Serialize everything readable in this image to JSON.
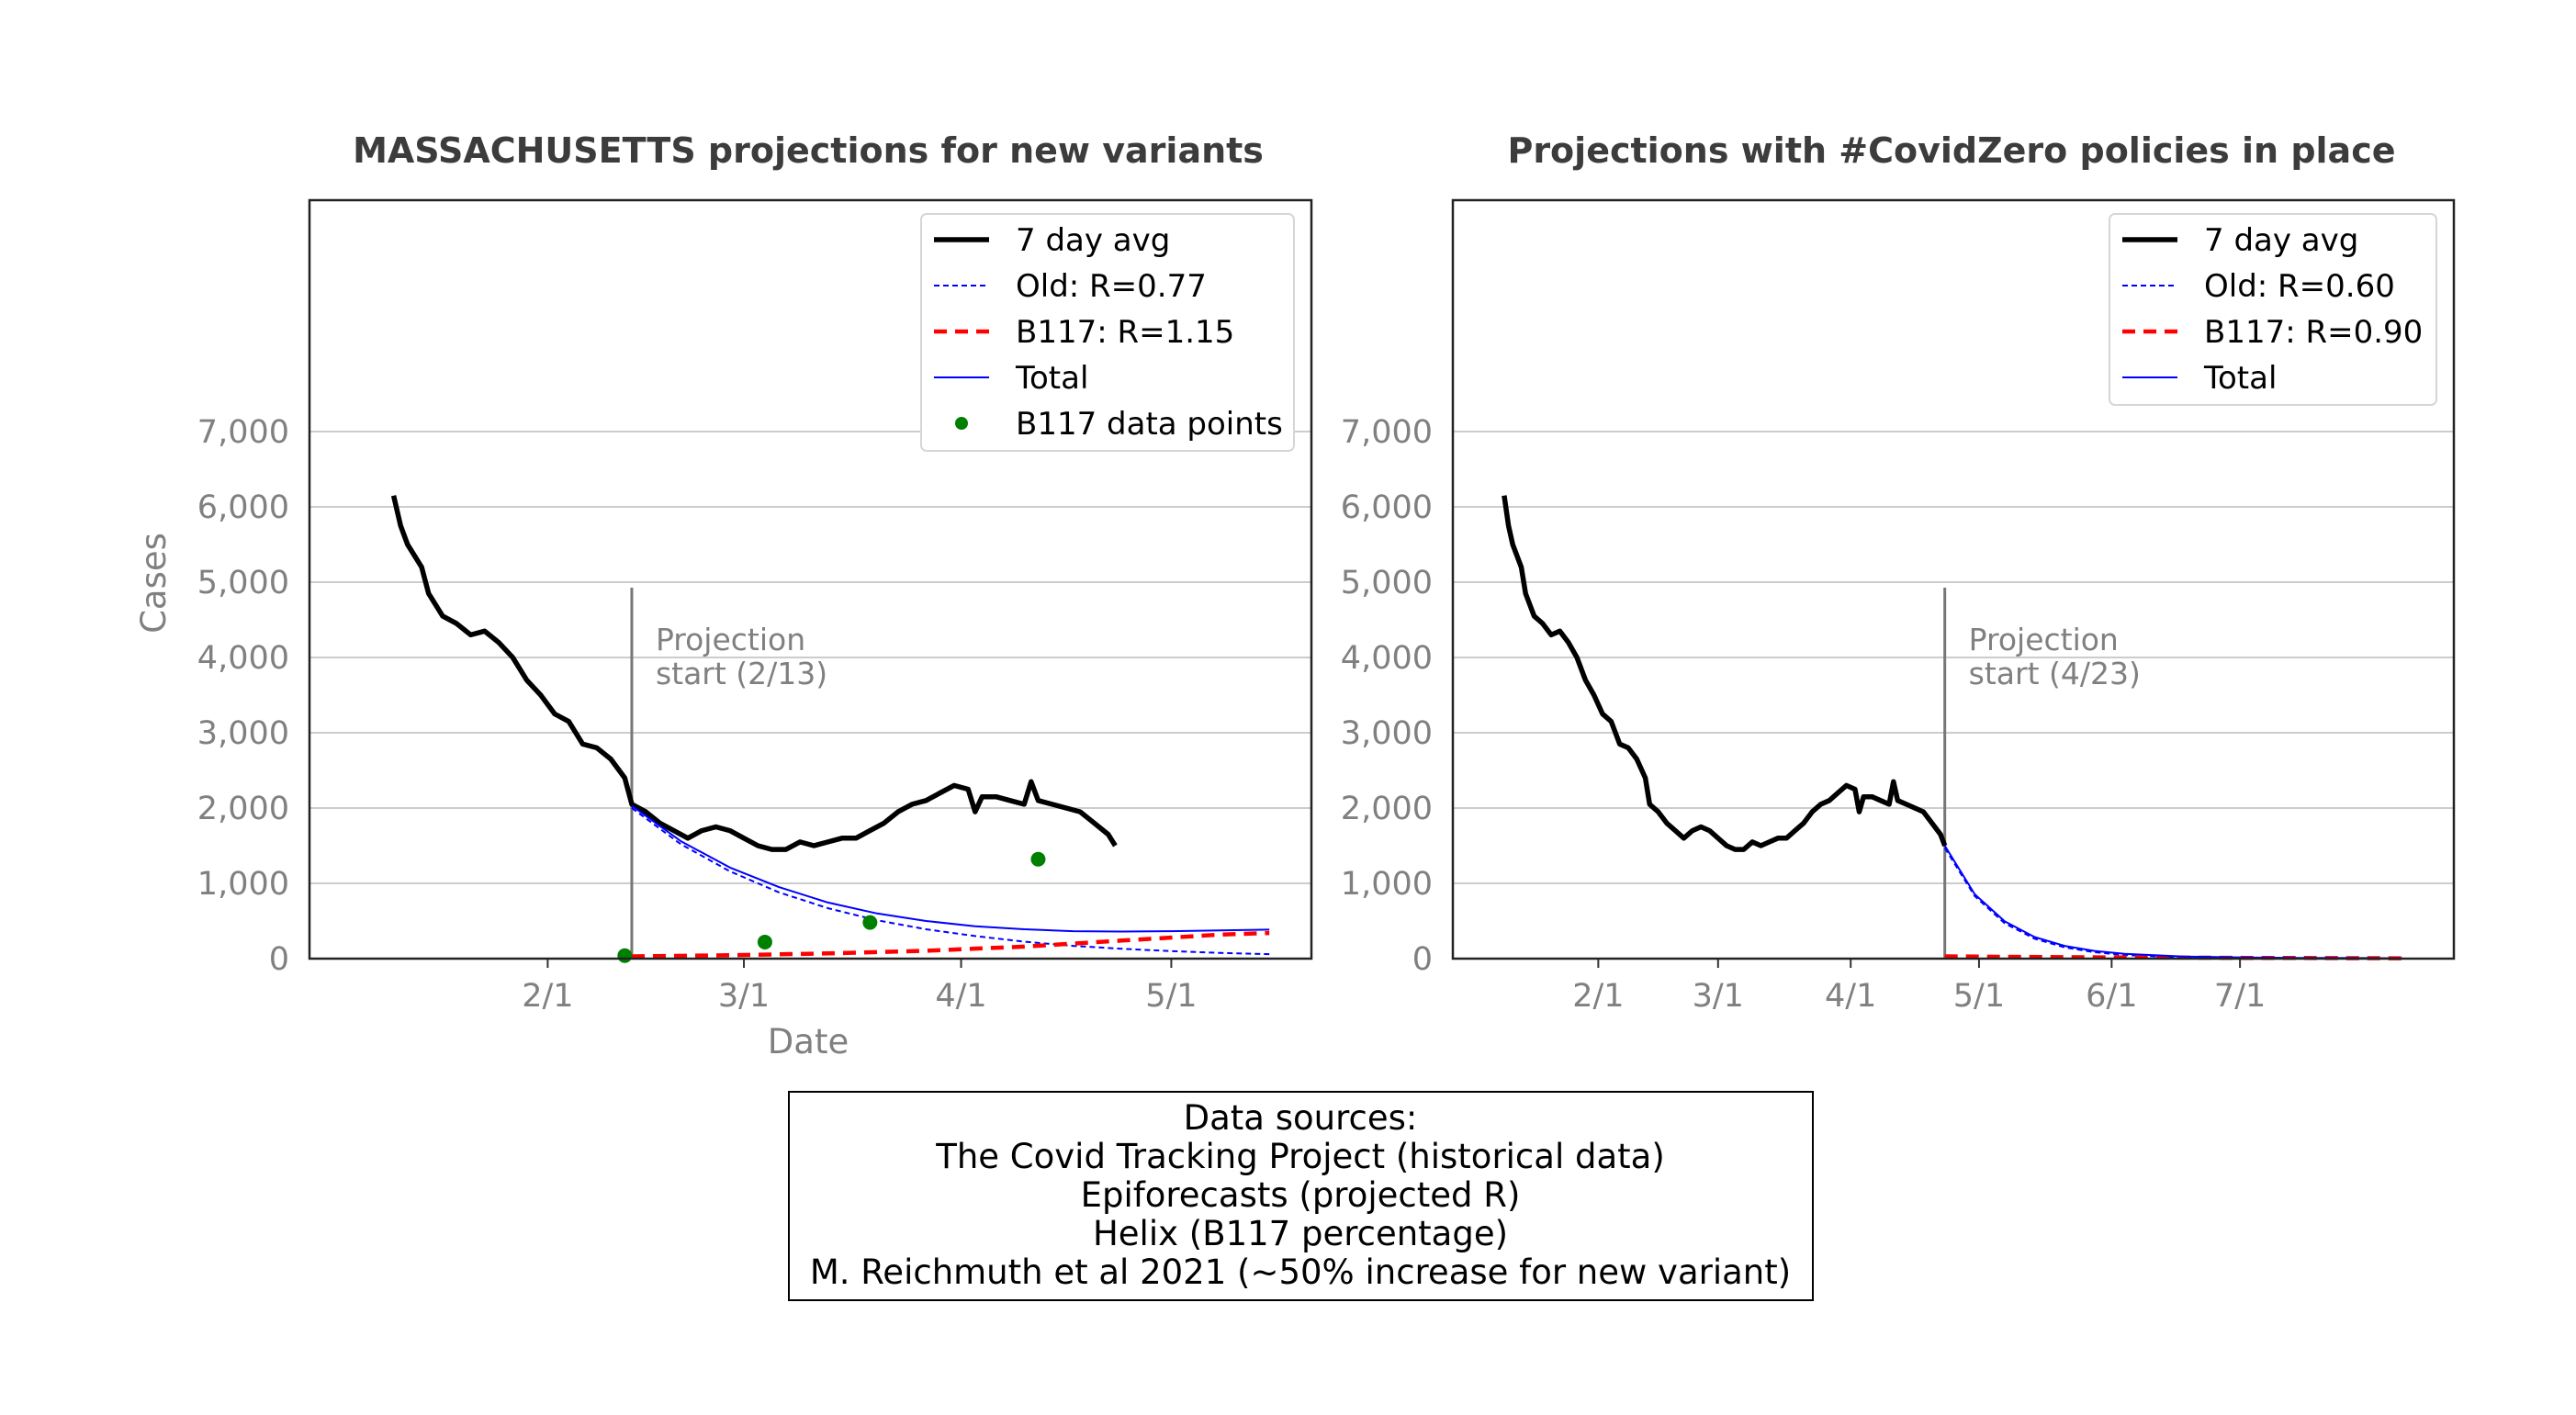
{
  "chart_data": [
    {
      "type": "line",
      "title": "MASSACHUSETTS projections for new variants",
      "xlabel": "Date",
      "ylabel": "Cases",
      "ylim": [
        0,
        7000
      ],
      "yticks": [
        0,
        1000,
        2000,
        3000,
        4000,
        5000,
        6000,
        7000
      ],
      "ytick_labels": [
        "0",
        "1,000",
        "2,000",
        "3,000",
        "4,000",
        "5,000",
        "6,000",
        "7,000"
      ],
      "xticks": [
        "2/1",
        "3/1",
        "4/1",
        "5/1"
      ],
      "grid": "horizontal",
      "legend_position": "top-right",
      "projection_start": "2021-02-13",
      "annotation": [
        "Projection",
        "start (2/13)"
      ],
      "series": [
        {
          "name": "7 day avg",
          "style": "solid",
          "color": "#000000",
          "points": [
            [
              "2021-01-10",
              6150
            ],
            [
              "2021-01-11",
              5750
            ],
            [
              "2021-01-12",
              5500
            ],
            [
              "2021-01-14",
              5200
            ],
            [
              "2021-01-15",
              4850
            ],
            [
              "2021-01-17",
              4550
            ],
            [
              "2021-01-19",
              4450
            ],
            [
              "2021-01-21",
              4300
            ],
            [
              "2021-01-23",
              4350
            ],
            [
              "2021-01-25",
              4200
            ],
            [
              "2021-01-27",
              4000
            ],
            [
              "2021-01-29",
              3700
            ],
            [
              "2021-01-31",
              3500
            ],
            [
              "2021-02-02",
              3250
            ],
            [
              "2021-02-04",
              3150
            ],
            [
              "2021-02-06",
              2850
            ],
            [
              "2021-02-08",
              2800
            ],
            [
              "2021-02-10",
              2650
            ],
            [
              "2021-02-12",
              2400
            ],
            [
              "2021-02-13",
              2050
            ],
            [
              "2021-02-15",
              1950
            ],
            [
              "2021-02-17",
              1800
            ],
            [
              "2021-02-19",
              1700
            ],
            [
              "2021-02-21",
              1600
            ],
            [
              "2021-02-23",
              1700
            ],
            [
              "2021-02-25",
              1750
            ],
            [
              "2021-02-27",
              1700
            ],
            [
              "2021-03-01",
              1600
            ],
            [
              "2021-03-03",
              1500
            ],
            [
              "2021-03-05",
              1450
            ],
            [
              "2021-03-07",
              1450
            ],
            [
              "2021-03-09",
              1550
            ],
            [
              "2021-03-11",
              1500
            ],
            [
              "2021-03-13",
              1550
            ],
            [
              "2021-03-15",
              1600
            ],
            [
              "2021-03-17",
              1600
            ],
            [
              "2021-03-19",
              1700
            ],
            [
              "2021-03-21",
              1800
            ],
            [
              "2021-03-23",
              1950
            ],
            [
              "2021-03-25",
              2050
            ],
            [
              "2021-03-27",
              2100
            ],
            [
              "2021-03-29",
              2200
            ],
            [
              "2021-03-31",
              2300
            ],
            [
              "2021-04-02",
              2250
            ],
            [
              "2021-04-03",
              1950
            ],
            [
              "2021-04-04",
              2150
            ],
            [
              "2021-04-06",
              2150
            ],
            [
              "2021-04-08",
              2100
            ],
            [
              "2021-04-10",
              2050
            ],
            [
              "2021-04-11",
              2350
            ],
            [
              "2021-04-12",
              2100
            ],
            [
              "2021-04-14",
              2050
            ],
            [
              "2021-04-16",
              2000
            ],
            [
              "2021-04-18",
              1950
            ],
            [
              "2021-04-20",
              1800
            ],
            [
              "2021-04-22",
              1650
            ],
            [
              "2021-04-23",
              1500
            ]
          ]
        },
        {
          "name": "Old: R=0.77",
          "style": "dashed",
          "color": "#0000ff",
          "points": [
            [
              "2021-02-13",
              2000
            ],
            [
              "2021-02-20",
              1520
            ],
            [
              "2021-02-27",
              1160
            ],
            [
              "2021-03-06",
              880
            ],
            [
              "2021-03-13",
              670
            ],
            [
              "2021-03-20",
              510
            ],
            [
              "2021-03-27",
              390
            ],
            [
              "2021-04-03",
              300
            ],
            [
              "2021-04-10",
              225
            ],
            [
              "2021-04-17",
              170
            ],
            [
              "2021-04-24",
              130
            ],
            [
              "2021-05-01",
              100
            ],
            [
              "2021-05-08",
              75
            ],
            [
              "2021-05-15",
              60
            ]
          ]
        },
        {
          "name": "B117: R=1.15",
          "style": "dashed",
          "color": "#ff0000",
          "points": [
            [
              "2021-02-13",
              30
            ],
            [
              "2021-02-27",
              45
            ],
            [
              "2021-03-13",
              70
            ],
            [
              "2021-03-27",
              105
            ],
            [
              "2021-04-10",
              160
            ],
            [
              "2021-04-24",
              240
            ],
            [
              "2021-05-08",
              320
            ],
            [
              "2021-05-15",
              340
            ]
          ]
        },
        {
          "name": "Total",
          "style": "solid",
          "color": "#0000ff",
          "points": [
            [
              "2021-02-13",
              2030
            ],
            [
              "2021-02-20",
              1560
            ],
            [
              "2021-02-27",
              1210
            ],
            [
              "2021-03-06",
              950
            ],
            [
              "2021-03-13",
              745
            ],
            [
              "2021-03-20",
              600
            ],
            [
              "2021-03-27",
              500
            ],
            [
              "2021-04-03",
              430
            ],
            [
              "2021-04-10",
              390
            ],
            [
              "2021-04-17",
              365
            ],
            [
              "2021-04-24",
              360
            ],
            [
              "2021-05-01",
              365
            ],
            [
              "2021-05-08",
              375
            ],
            [
              "2021-05-15",
              385
            ]
          ]
        },
        {
          "name": "B117 data points",
          "style": "markers",
          "color": "#008000",
          "points": [
            [
              "2021-02-12",
              40
            ],
            [
              "2021-03-04",
              220
            ],
            [
              "2021-03-19",
              480
            ],
            [
              "2021-04-12",
              1320
            ]
          ]
        }
      ]
    },
    {
      "type": "line",
      "title": "Projections with #CovidZero policies in place",
      "xlabel": "",
      "ylabel": "",
      "ylim": [
        0,
        7000
      ],
      "yticks": [
        0,
        1000,
        2000,
        3000,
        4000,
        5000,
        6000,
        7000
      ],
      "ytick_labels": [
        "0",
        "1,000",
        "2,000",
        "3,000",
        "4,000",
        "5,000",
        "6,000",
        "7,000"
      ],
      "xticks": [
        "2/1",
        "3/1",
        "4/1",
        "5/1",
        "6/1",
        "7/1"
      ],
      "grid": "horizontal",
      "legend_position": "top-right",
      "projection_start": "2021-04-23",
      "annotation": [
        "Projection",
        "start (4/23)"
      ],
      "series": [
        {
          "name": "7 day avg",
          "style": "solid",
          "color": "#000000",
          "points": [
            [
              "2021-01-10",
              6150
            ],
            [
              "2021-01-11",
              5750
            ],
            [
              "2021-01-12",
              5500
            ],
            [
              "2021-01-14",
              5200
            ],
            [
              "2021-01-15",
              4850
            ],
            [
              "2021-01-17",
              4550
            ],
            [
              "2021-01-19",
              4450
            ],
            [
              "2021-01-21",
              4300
            ],
            [
              "2021-01-23",
              4350
            ],
            [
              "2021-01-25",
              4200
            ],
            [
              "2021-01-27",
              4000
            ],
            [
              "2021-01-29",
              3700
            ],
            [
              "2021-01-31",
              3500
            ],
            [
              "2021-02-02",
              3250
            ],
            [
              "2021-02-04",
              3150
            ],
            [
              "2021-02-06",
              2850
            ],
            [
              "2021-02-08",
              2800
            ],
            [
              "2021-02-10",
              2650
            ],
            [
              "2021-02-12",
              2400
            ],
            [
              "2021-02-13",
              2050
            ],
            [
              "2021-02-15",
              1950
            ],
            [
              "2021-02-17",
              1800
            ],
            [
              "2021-02-19",
              1700
            ],
            [
              "2021-02-21",
              1600
            ],
            [
              "2021-02-23",
              1700
            ],
            [
              "2021-02-25",
              1750
            ],
            [
              "2021-02-27",
              1700
            ],
            [
              "2021-03-01",
              1600
            ],
            [
              "2021-03-03",
              1500
            ],
            [
              "2021-03-05",
              1450
            ],
            [
              "2021-03-07",
              1450
            ],
            [
              "2021-03-09",
              1550
            ],
            [
              "2021-03-11",
              1500
            ],
            [
              "2021-03-13",
              1550
            ],
            [
              "2021-03-15",
              1600
            ],
            [
              "2021-03-17",
              1600
            ],
            [
              "2021-03-19",
              1700
            ],
            [
              "2021-03-21",
              1800
            ],
            [
              "2021-03-23",
              1950
            ],
            [
              "2021-03-25",
              2050
            ],
            [
              "2021-03-27",
              2100
            ],
            [
              "2021-03-29",
              2200
            ],
            [
              "2021-03-31",
              2300
            ],
            [
              "2021-04-02",
              2250
            ],
            [
              "2021-04-03",
              1950
            ],
            [
              "2021-04-04",
              2150
            ],
            [
              "2021-04-06",
              2150
            ],
            [
              "2021-04-08",
              2100
            ],
            [
              "2021-04-10",
              2050
            ],
            [
              "2021-04-11",
              2350
            ],
            [
              "2021-04-12",
              2100
            ],
            [
              "2021-04-14",
              2050
            ],
            [
              "2021-04-16",
              2000
            ],
            [
              "2021-04-18",
              1950
            ],
            [
              "2021-04-20",
              1800
            ],
            [
              "2021-04-22",
              1650
            ],
            [
              "2021-04-23",
              1500
            ]
          ]
        },
        {
          "name": "Old: R=0.60",
          "style": "dashed",
          "color": "#0000ff",
          "points": [
            [
              "2021-04-23",
              1470
            ],
            [
              "2021-04-30",
              830
            ],
            [
              "2021-05-07",
              470
            ],
            [
              "2021-05-14",
              265
            ],
            [
              "2021-05-21",
              150
            ],
            [
              "2021-05-28",
              85
            ],
            [
              "2021-06-04",
              48
            ],
            [
              "2021-06-18",
              15
            ],
            [
              "2021-07-02",
              5
            ],
            [
              "2021-07-16",
              2
            ],
            [
              "2021-07-30",
              1
            ],
            [
              "2021-08-08",
              0
            ]
          ]
        },
        {
          "name": "B117: R=0.90",
          "style": "dashed",
          "color": "#ff0000",
          "points": [
            [
              "2021-04-23",
              30
            ],
            [
              "2021-05-07",
              25
            ],
            [
              "2021-05-21",
              20
            ],
            [
              "2021-06-04",
              16
            ],
            [
              "2021-06-18",
              13
            ],
            [
              "2021-07-02",
              10
            ],
            [
              "2021-07-16",
              8
            ],
            [
              "2021-07-30",
              6
            ],
            [
              "2021-08-08",
              5
            ]
          ]
        },
        {
          "name": "Total",
          "style": "solid",
          "color": "#0000ff",
          "points": [
            [
              "2021-04-23",
              1500
            ],
            [
              "2021-04-30",
              855
            ],
            [
              "2021-05-07",
              495
            ],
            [
              "2021-05-14",
              287
            ],
            [
              "2021-05-21",
              170
            ],
            [
              "2021-05-28",
              103
            ],
            [
              "2021-06-04",
              64
            ],
            [
              "2021-06-18",
              28
            ],
            [
              "2021-07-02",
              15
            ],
            [
              "2021-07-16",
              10
            ],
            [
              "2021-07-30",
              7
            ],
            [
              "2021-08-08",
              5
            ]
          ]
        }
      ]
    }
  ],
  "sources_box": {
    "lines": [
      "Data sources:",
      "The Covid Tracking Project (historical data)",
      "Epiforecasts (projected R)",
      "Helix (B117 percentage)",
      "M. Reichmuth et al 2021 (~50% increase for new variant)"
    ]
  }
}
